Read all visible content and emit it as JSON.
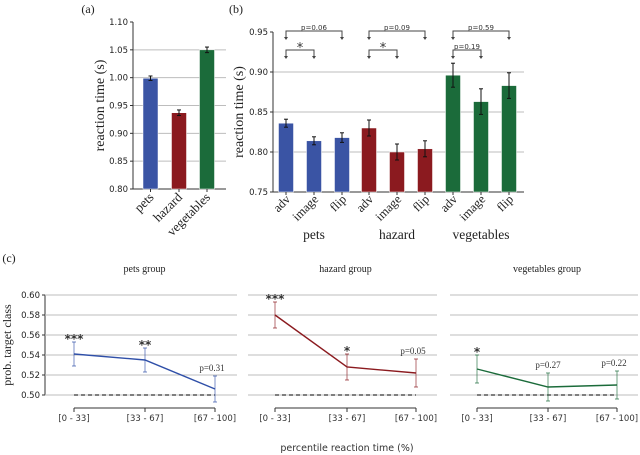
{
  "chart_data": [
    {
      "panel": "(a)",
      "type": "bar",
      "title": "",
      "xlabel": "",
      "ylabel": "reaction time (s)",
      "ylim": [
        0.8,
        1.1
      ],
      "yticks": [
        "0.80",
        "0.85",
        "0.90",
        "0.95",
        "1.00",
        "1.05",
        "1.10"
      ],
      "grid": true,
      "categories": [
        "pets",
        "hazard",
        "vegetables"
      ],
      "values": [
        0.999,
        0.937,
        1.05
      ],
      "errors": [
        0.004,
        0.005,
        0.005
      ],
      "colors": [
        "#3a54a4",
        "#8b1a1f",
        "#1b6b3a"
      ]
    },
    {
      "panel": "(b)",
      "type": "bar",
      "ylabel": "reaction time (s)",
      "ylim": [
        0.75,
        0.95
      ],
      "yticks": [
        "0.75",
        "0.80",
        "0.85",
        "0.90",
        "0.95"
      ],
      "grid": true,
      "groups": [
        {
          "name": "pets",
          "color": "#3a54a4",
          "categories": [
            "adv",
            "image",
            "flip"
          ],
          "values": [
            0.836,
            0.814,
            0.818
          ],
          "errors": [
            0.005,
            0.005,
            0.006
          ]
        },
        {
          "name": "hazard",
          "color": "#8b1a1f",
          "categories": [
            "adv",
            "image",
            "flip"
          ],
          "values": [
            0.83,
            0.8,
            0.804
          ],
          "errors": [
            0.01,
            0.01,
            0.01
          ]
        },
        {
          "name": "vegetables",
          "color": "#1b6b3a",
          "categories": [
            "adv",
            "image",
            "flip"
          ],
          "values": [
            0.896,
            0.863,
            0.883
          ],
          "errors": [
            0.015,
            0.016,
            0.016
          ]
        }
      ],
      "annotations": [
        {
          "group": 0,
          "from": "adv",
          "to": "flip",
          "label": "p=0.06",
          "level": "top"
        },
        {
          "group": 0,
          "from": "adv",
          "to": "image",
          "label": "*",
          "level": "low"
        },
        {
          "group": 1,
          "from": "adv",
          "to": "flip",
          "label": "p=0.09",
          "level": "top"
        },
        {
          "group": 1,
          "from": "adv",
          "to": "image",
          "label": "*",
          "level": "low"
        },
        {
          "group": 2,
          "from": "adv",
          "to": "flip",
          "label": "p=0.59",
          "level": "top"
        },
        {
          "group": 2,
          "from": "adv",
          "to": "image",
          "label": "p=0.19",
          "level": "low"
        }
      ]
    },
    {
      "panel": "(c)",
      "type": "line",
      "ylabel": "prob. target class",
      "xlabel": "percentile reaction time (%)",
      "ylim": [
        0.5,
        0.6
      ],
      "yticks": [
        "0.50",
        "0.52",
        "0.54",
        "0.56",
        "0.58",
        "0.60"
      ],
      "x": [
        "[0 - 33]",
        "[33 - 67]",
        "[67 - 100]"
      ],
      "baseline": 0.5,
      "grid": true,
      "series": [
        {
          "name": "pets group",
          "color": "#2f4fa8",
          "values": [
            0.541,
            0.535,
            0.506
          ],
          "errors": [
            0.012,
            0.012,
            0.013
          ],
          "labels": [
            "***",
            "**",
            "p=0.31"
          ]
        },
        {
          "name": "hazard group",
          "color": "#8b1a1f",
          "values": [
            0.58,
            0.528,
            0.522
          ],
          "errors": [
            0.013,
            0.013,
            0.014
          ],
          "labels": [
            "***",
            "*",
            "p=0.05"
          ]
        },
        {
          "name": "vegetables group",
          "color": "#1b6b3a",
          "values": [
            0.526,
            0.508,
            0.51
          ],
          "errors": [
            0.014,
            0.014,
            0.014
          ],
          "labels": [
            "*",
            "p=0.27",
            "p=0.22"
          ]
        }
      ]
    }
  ]
}
